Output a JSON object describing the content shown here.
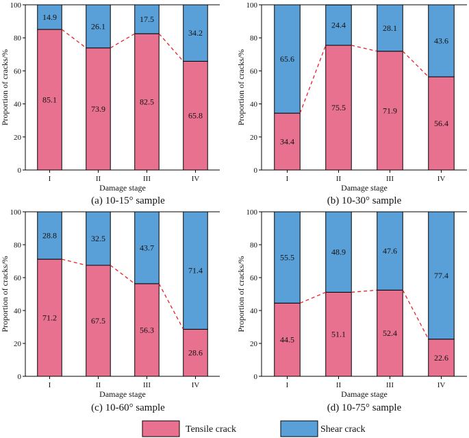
{
  "colors": {
    "tensile": "#e8718f",
    "shear": "#5aa0d8",
    "connector": "#e8202a",
    "axis": "#000000"
  },
  "legend": {
    "tensile_label": "Tensile crack",
    "shear_label": "Shear crack"
  },
  "chart_data": [
    {
      "type": "bar",
      "stacked": true,
      "caption": "(a) 10-15° sample",
      "xlabel": "Damage stage",
      "ylabel": "Proportion of cracks/%",
      "ylim": [
        0,
        100
      ],
      "yticks": [
        0,
        20,
        40,
        60,
        80,
        100
      ],
      "categories": [
        "I",
        "II",
        "III",
        "IV"
      ],
      "series": [
        {
          "name": "Tensile crack",
          "values": [
            85.1,
            73.9,
            82.5,
            65.8
          ]
        },
        {
          "name": "Shear crack",
          "values": [
            14.9,
            26.1,
            17.5,
            34.2
          ]
        }
      ]
    },
    {
      "type": "bar",
      "stacked": true,
      "caption": "(b) 10-30° sample",
      "xlabel": "Damage stage",
      "ylabel": "Proportion of cracks/%",
      "ylim": [
        0,
        100
      ],
      "yticks": [
        0,
        20,
        40,
        60,
        80,
        100
      ],
      "categories": [
        "I",
        "II",
        "III",
        "IV"
      ],
      "series": [
        {
          "name": "Tensile crack",
          "values": [
            34.4,
            75.5,
            71.9,
            56.4
          ]
        },
        {
          "name": "Shear crack",
          "values": [
            65.6,
            24.4,
            28.1,
            43.6
          ]
        }
      ]
    },
    {
      "type": "bar",
      "stacked": true,
      "caption": "(c) 10-60° sample",
      "xlabel": "Damage stage",
      "ylabel": "Proportion of cracks/%",
      "ylim": [
        0,
        100
      ],
      "yticks": [
        0,
        20,
        40,
        60,
        80,
        100
      ],
      "categories": [
        "I",
        "II",
        "III",
        "IV"
      ],
      "series": [
        {
          "name": "Tensile crack",
          "values": [
            71.2,
            67.5,
            56.3,
            28.6
          ]
        },
        {
          "name": "Shear crack",
          "values": [
            28.8,
            32.5,
            43.7,
            71.4
          ]
        }
      ]
    },
    {
      "type": "bar",
      "stacked": true,
      "caption": "(d) 10-75° sample",
      "xlabel": "Damage stage",
      "ylabel": "Proportion of cracks/%",
      "ylim": [
        0,
        100
      ],
      "yticks": [
        0,
        20,
        40,
        60,
        80,
        100
      ],
      "categories": [
        "I",
        "II",
        "III",
        "IV"
      ],
      "series": [
        {
          "name": "Tensile crack",
          "values": [
            44.5,
            51.1,
            52.4,
            22.6
          ]
        },
        {
          "name": "Shear crack",
          "values": [
            55.5,
            48.9,
            47.6,
            77.4
          ]
        }
      ]
    }
  ]
}
